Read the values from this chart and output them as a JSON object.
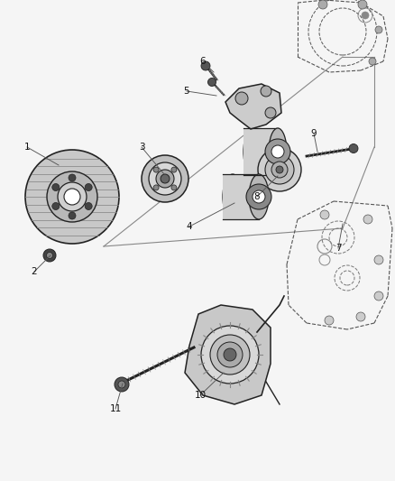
{
  "background": "#f5f5f5",
  "label_color": "#111111",
  "line_color": "#222222",
  "dashed_color": "#555555",
  "figsize": [
    4.38,
    5.33
  ],
  "dpi": 100,
  "xlim": [
    0,
    438
  ],
  "ylim": [
    0,
    533
  ]
}
